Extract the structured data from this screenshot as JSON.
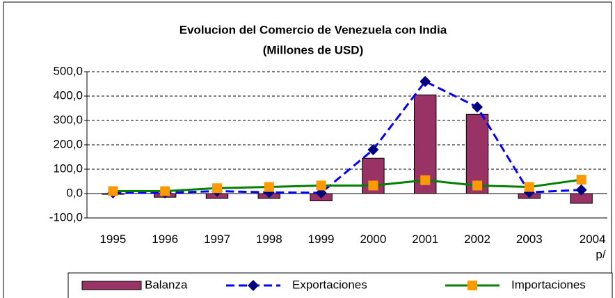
{
  "chart_data": {
    "type": "combo",
    "title": "Evolucion del Comercio de Venezuela con India",
    "subtitle": "(Millones de USD)",
    "categories": [
      "1995",
      "1996",
      "1997",
      "1998",
      "1999",
      "2000",
      "2001",
      "2002",
      "2003",
      "2004\np/"
    ],
    "series": [
      {
        "name": "Balanza",
        "type": "bar",
        "color": "#993366",
        "values": [
          -3,
          -15,
          -20,
          -20,
          -30,
          145,
          405,
          325,
          -20,
          -40
        ]
      },
      {
        "name": "Exportaciones",
        "type": "line",
        "color": "#0000ff",
        "marker_color": "#000080",
        "marker": "diamond",
        "dashed": true,
        "values": [
          3,
          3,
          10,
          5,
          3,
          180,
          460,
          355,
          5,
          15
        ]
      },
      {
        "name": "Importaciones",
        "type": "line",
        "color": "#008000",
        "marker_color": "#ff9900",
        "marker": "square",
        "dashed": false,
        "values": [
          10,
          10,
          22,
          27,
          33,
          33,
          55,
          33,
          27,
          57
        ]
      }
    ],
    "ylim": [
      -100,
      500
    ],
    "yticks": [
      {
        "value": -100,
        "label": "-100,0"
      },
      {
        "value": 0,
        "label": "0,0"
      },
      {
        "value": 100,
        "label": "100,0"
      },
      {
        "value": 200,
        "label": "200,0"
      },
      {
        "value": 300,
        "label": "300,0"
      },
      {
        "value": 400,
        "label": "400,0"
      },
      {
        "value": 500,
        "label": "500,0"
      }
    ],
    "grid": true,
    "legend": "bottom"
  }
}
